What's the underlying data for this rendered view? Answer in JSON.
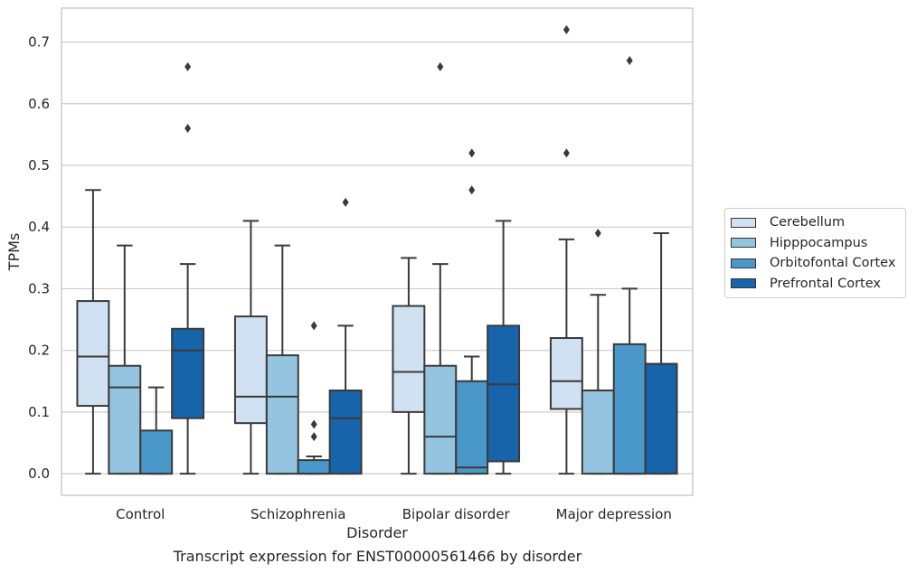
{
  "chart_data": {
    "type": "box",
    "xlabel": "Disorder",
    "ylabel": "TPMs",
    "caption": "Transcript expression for ENST00000561466 by disorder",
    "ylim": [
      -0.035,
      0.755
    ],
    "yticks": [
      0.0,
      0.1,
      0.2,
      0.3,
      0.4,
      0.5,
      0.6,
      0.7
    ],
    "ytick_labels": [
      "0.0",
      "0.1",
      "0.2",
      "0.3",
      "0.4",
      "0.5",
      "0.6",
      "0.7"
    ],
    "grid": "horizontal",
    "legend_position": "right",
    "categories": [
      "Control",
      "Schizophrenia",
      "Bipolar disorder",
      "Major depression"
    ],
    "series": [
      {
        "name": "Cerebellum",
        "color": "#d0e1f2",
        "boxes": [
          {
            "whislo": 0.0,
            "q1": 0.11,
            "med": 0.19,
            "q3": 0.28,
            "whishi": 0.46,
            "fliers": []
          },
          {
            "whislo": 0.0,
            "q1": 0.082,
            "med": 0.125,
            "q3": 0.255,
            "whishi": 0.41,
            "fliers": []
          },
          {
            "whislo": 0.0,
            "q1": 0.1,
            "med": 0.165,
            "q3": 0.272,
            "whishi": 0.35,
            "fliers": []
          },
          {
            "whislo": 0.0,
            "q1": 0.105,
            "med": 0.15,
            "q3": 0.22,
            "whishi": 0.38,
            "fliers": [
              0.52,
              0.72
            ]
          }
        ]
      },
      {
        "name": "Hipppocampus",
        "color": "#94c4df",
        "boxes": [
          {
            "whislo": 0.0,
            "q1": 0.0,
            "med": 0.14,
            "q3": 0.175,
            "whishi": 0.37,
            "fliers": []
          },
          {
            "whislo": 0.0,
            "q1": 0.0,
            "med": 0.125,
            "q3": 0.192,
            "whishi": 0.37,
            "fliers": []
          },
          {
            "whislo": 0.0,
            "q1": 0.0,
            "med": 0.06,
            "q3": 0.175,
            "whishi": 0.34,
            "fliers": [
              0.66
            ]
          },
          {
            "whislo": 0.0,
            "q1": 0.0,
            "med": 0.135,
            "q3": 0.135,
            "whishi": 0.29,
            "fliers": [
              0.39
            ]
          }
        ]
      },
      {
        "name": "Orbitofontal Cortex",
        "color": "#4a98c9",
        "boxes": [
          {
            "whislo": 0.0,
            "q1": 0.0,
            "med": 0.0,
            "q3": 0.07,
            "whishi": 0.14,
            "fliers": []
          },
          {
            "whislo": 0.0,
            "q1": 0.0,
            "med": 0.0,
            "q3": 0.022,
            "whishi": 0.028,
            "fliers": [
              0.06,
              0.08,
              0.24
            ]
          },
          {
            "whislo": 0.0,
            "q1": 0.0,
            "med": 0.01,
            "q3": 0.15,
            "whishi": 0.19,
            "fliers": [
              0.46,
              0.52
            ]
          },
          {
            "whislo": 0.0,
            "q1": 0.0,
            "med": 0.0,
            "q3": 0.21,
            "whishi": 0.3,
            "fliers": [
              0.67
            ]
          }
        ]
      },
      {
        "name": "Prefrontal Cortex",
        "color": "#1764ab",
        "boxes": [
          {
            "whislo": 0.0,
            "q1": 0.09,
            "med": 0.2,
            "q3": 0.235,
            "whishi": 0.34,
            "fliers": [
              0.56,
              0.66
            ]
          },
          {
            "whislo": 0.0,
            "q1": 0.0,
            "med": 0.09,
            "q3": 0.135,
            "whishi": 0.24,
            "fliers": [
              0.44
            ]
          },
          {
            "whislo": 0.0,
            "q1": 0.02,
            "med": 0.145,
            "q3": 0.24,
            "whishi": 0.41,
            "fliers": []
          },
          {
            "whislo": 0.0,
            "q1": 0.0,
            "med": 0.178,
            "q3": 0.178,
            "whishi": 0.39,
            "fliers": []
          }
        ]
      }
    ]
  }
}
